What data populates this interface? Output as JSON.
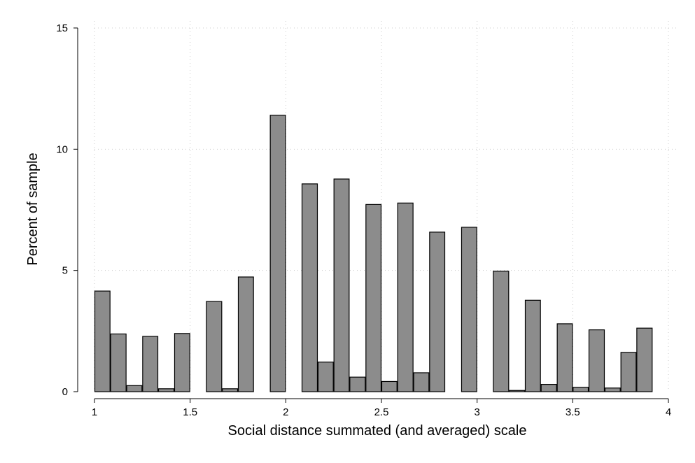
{
  "chart_data": {
    "type": "bar",
    "title": "",
    "xlabel": "Social distance summated (and averaged) scale",
    "ylabel": "Percent of sample",
    "xlim": [
      1,
      4
    ],
    "ylim": [
      0,
      15
    ],
    "x_ticks": [
      "1",
      "1.5",
      "2",
      "2.5",
      "3",
      "3.5",
      "4"
    ],
    "y_ticks": [
      "0",
      "5",
      "10",
      "15"
    ],
    "grid": true,
    "legend": "none",
    "bar_color": "#8c8c8c",
    "bar_edge_color": "#000000",
    "bins": [
      {
        "x_start": 1.0,
        "x_end": 1.083,
        "value": 4.15
      },
      {
        "x_start": 1.083,
        "x_end": 1.167,
        "value": 2.38
      },
      {
        "x_start": 1.167,
        "x_end": 1.25,
        "value": 0.25
      },
      {
        "x_start": 1.25,
        "x_end": 1.333,
        "value": 2.28
      },
      {
        "x_start": 1.333,
        "x_end": 1.417,
        "value": 0.12
      },
      {
        "x_start": 1.417,
        "x_end": 1.5,
        "value": 2.4
      },
      {
        "x_start": 1.5,
        "x_end": 1.583,
        "value": 0
      },
      {
        "x_start": 1.583,
        "x_end": 1.667,
        "value": 3.72
      },
      {
        "x_start": 1.667,
        "x_end": 1.75,
        "value": 0.12
      },
      {
        "x_start": 1.75,
        "x_end": 1.833,
        "value": 4.73
      },
      {
        "x_start": 1.833,
        "x_end": 1.917,
        "value": 0
      },
      {
        "x_start": 1.917,
        "x_end": 2.0,
        "value": 11.4
      },
      {
        "x_start": 2.0,
        "x_end": 2.083,
        "value": 0
      },
      {
        "x_start": 2.083,
        "x_end": 2.167,
        "value": 8.57
      },
      {
        "x_start": 2.167,
        "x_end": 2.25,
        "value": 1.22
      },
      {
        "x_start": 2.25,
        "x_end": 2.333,
        "value": 8.77
      },
      {
        "x_start": 2.333,
        "x_end": 2.417,
        "value": 0.6
      },
      {
        "x_start": 2.417,
        "x_end": 2.5,
        "value": 7.72
      },
      {
        "x_start": 2.5,
        "x_end": 2.583,
        "value": 0.42
      },
      {
        "x_start": 2.583,
        "x_end": 2.667,
        "value": 7.78
      },
      {
        "x_start": 2.667,
        "x_end": 2.75,
        "value": 0.78
      },
      {
        "x_start": 2.75,
        "x_end": 2.833,
        "value": 6.58
      },
      {
        "x_start": 2.833,
        "x_end": 2.917,
        "value": 0
      },
      {
        "x_start": 2.917,
        "x_end": 3.0,
        "value": 6.78
      },
      {
        "x_start": 3.0,
        "x_end": 3.083,
        "value": 0
      },
      {
        "x_start": 3.083,
        "x_end": 3.167,
        "value": 4.97
      },
      {
        "x_start": 3.167,
        "x_end": 3.25,
        "value": 0.05
      },
      {
        "x_start": 3.25,
        "x_end": 3.333,
        "value": 3.77
      },
      {
        "x_start": 3.333,
        "x_end": 3.417,
        "value": 0.3
      },
      {
        "x_start": 3.417,
        "x_end": 3.5,
        "value": 2.8
      },
      {
        "x_start": 3.5,
        "x_end": 3.583,
        "value": 0.18
      },
      {
        "x_start": 3.583,
        "x_end": 3.667,
        "value": 2.55
      },
      {
        "x_start": 3.667,
        "x_end": 3.75,
        "value": 0.15
      },
      {
        "x_start": 3.75,
        "x_end": 3.833,
        "value": 1.62
      },
      {
        "x_start": 3.833,
        "x_end": 3.917,
        "value": 2.62
      }
    ]
  }
}
